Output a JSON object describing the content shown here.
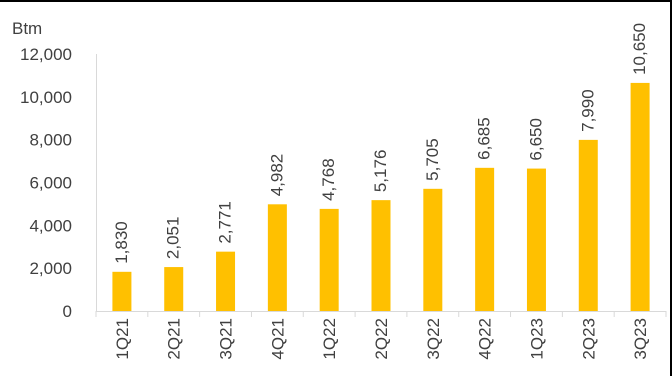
{
  "chart_data": {
    "type": "bar",
    "unit_label": "Btm",
    "categories": [
      "1Q21",
      "2Q21",
      "3Q21",
      "4Q21",
      "1Q22",
      "2Q22",
      "3Q22",
      "4Q22",
      "1Q23",
      "2Q23",
      "3Q23"
    ],
    "values": [
      1830,
      2051,
      2771,
      4982,
      4768,
      5176,
      5705,
      6685,
      6650,
      7990,
      10650
    ],
    "data_labels": [
      "1,830",
      "2,051",
      "2,771",
      "4,982",
      "4,768",
      "5,176",
      "5,705",
      "6,685",
      "6,650",
      "7,990",
      "10,650"
    ],
    "yticks": [
      0,
      2000,
      4000,
      6000,
      8000,
      10000,
      12000
    ],
    "ytick_labels": [
      "0",
      "2,000",
      "4,000",
      "6,000",
      "8,000",
      "10,000",
      "12,000"
    ],
    "ylim": [
      0,
      12000
    ],
    "grid": false,
    "legend": "none",
    "bar_color": "#FFC000",
    "axis_color": "#D9D9D9",
    "text_color": "#404040",
    "frame_color": "#000000"
  }
}
